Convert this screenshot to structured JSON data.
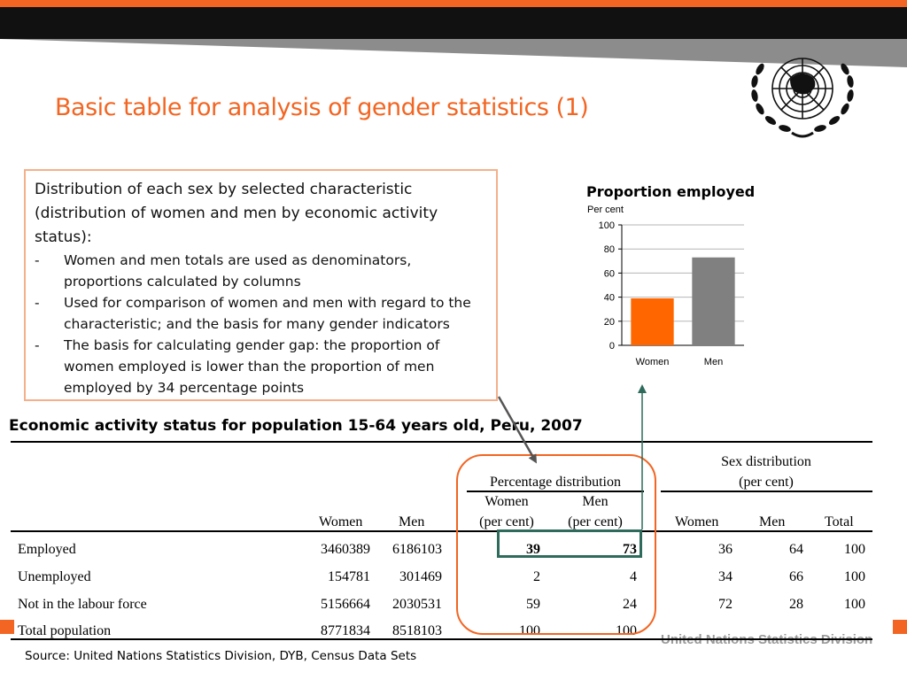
{
  "slide": {
    "title": "Basic table for analysis of gender statistics (1)",
    "footer_org": "United Nations Statistics Division",
    "source": "Source: United Nations Statistics Division, DYB, Census Data Sets"
  },
  "logo": {
    "icon": "un-emblem-icon"
  },
  "note": {
    "intro": "Distribution of each sex by selected characteristic (distribution of women and men by economic activity status):",
    "bullets": [
      "Women and men totals are used as denominators, proportions calculated by columns",
      "Used for comparison of women and men with regard to the characteristic; and the basis for many gender indicators",
      "The basis for calculating gender gap: the proportion of women employed is lower than the proportion of men employed by 34 percentage points"
    ],
    "dash": "-"
  },
  "chart_data": {
    "type": "bar",
    "title": "Proportion employed",
    "ylabel": "Per cent",
    "categories": [
      "Women",
      "Men"
    ],
    "values": [
      39,
      73
    ],
    "ylim": [
      0,
      100
    ],
    "yticks": [
      0,
      20,
      40,
      60,
      80,
      100
    ],
    "colors": [
      "#ff6600",
      "#808080"
    ],
    "grid": true
  },
  "table": {
    "title": "Economic activity status for population 15-64 years old, Peru, 2007",
    "group_headers": {
      "percentage": "Percentage distribution",
      "sex_line1": "Sex distribution",
      "sex_line2": "(per cent)"
    },
    "col_headers": {
      "women": "Women",
      "men": "Men",
      "pct_women_1": "Women",
      "pct_women_2": "(per cent)",
      "pct_men_1": "Men",
      "pct_men_2": "(per cent)",
      "sex_women": "Women",
      "sex_men": "Men",
      "sex_total": "Total"
    },
    "rows": [
      {
        "label": "Employed",
        "women": "3460389",
        "men": "6186103",
        "pct_women": "39",
        "pct_men": "73",
        "sex_women": "36",
        "sex_men": "64",
        "sex_total": "100"
      },
      {
        "label": "Unemployed",
        "women": "154781",
        "men": "301469",
        "pct_women": "2",
        "pct_men": "4",
        "sex_women": "34",
        "sex_men": "66",
        "sex_total": "100"
      },
      {
        "label": "Not in the labour force",
        "women": "5156664",
        "men": "2030531",
        "pct_women": "59",
        "pct_men": "24",
        "sex_women": "72",
        "sex_men": "28",
        "sex_total": "100"
      },
      {
        "label": "Total population",
        "women": "8771834",
        "men": "8518103",
        "pct_women": "100",
        "pct_men": "100",
        "sex_women": "",
        "sex_men": "",
        "sex_total": ""
      }
    ]
  },
  "colors": {
    "accent": "#f26522",
    "highlight_green": "#2e6b5b",
    "bar_women": "#ff6600",
    "bar_men": "#808080"
  }
}
